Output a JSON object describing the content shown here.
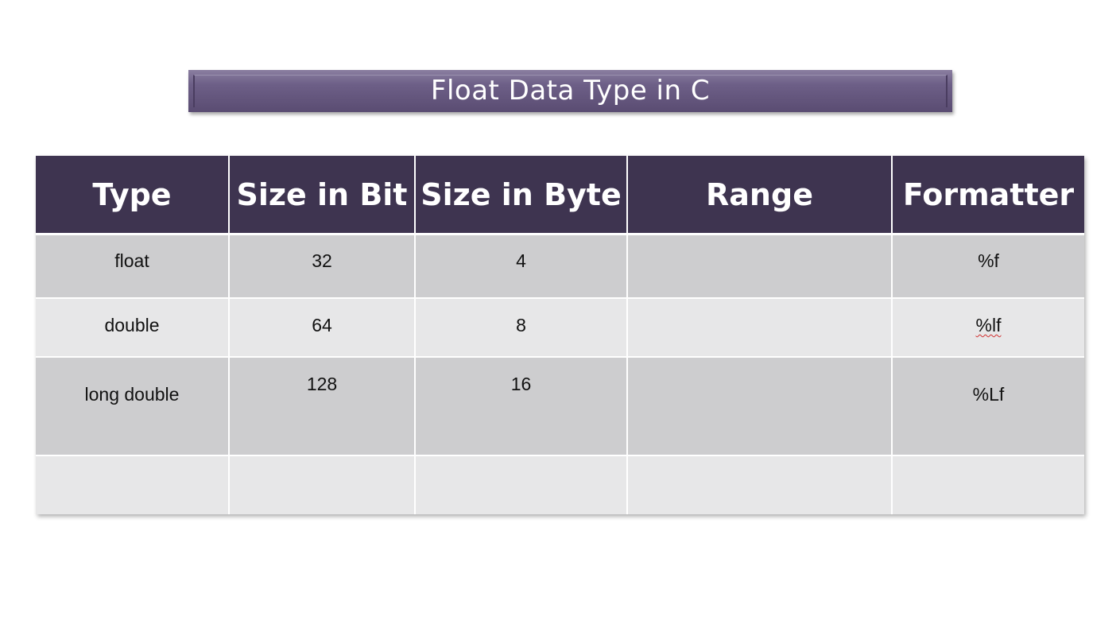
{
  "title": "Float Data Type in C",
  "table": {
    "headers": [
      "Type",
      "Size in Bit",
      "Size in Byte",
      "Range",
      "Formatter"
    ],
    "rows": [
      {
        "type": "float",
        "bits": "32",
        "bytes": "4",
        "range": "",
        "formatter": "%f"
      },
      {
        "type": "double",
        "bits": "64",
        "bytes": "8",
        "range": "",
        "formatter": "%lf"
      },
      {
        "type": "long double",
        "bits": "128",
        "bytes": "16",
        "range": "",
        "formatter": "%Lf"
      },
      {
        "type": "",
        "bits": "",
        "bytes": "",
        "range": "",
        "formatter": ""
      }
    ]
  },
  "colors": {
    "banner": "#6d5f87",
    "header_bg": "#3e3450",
    "row_dark": "#cdcdcf",
    "row_light": "#e7e7e8"
  }
}
